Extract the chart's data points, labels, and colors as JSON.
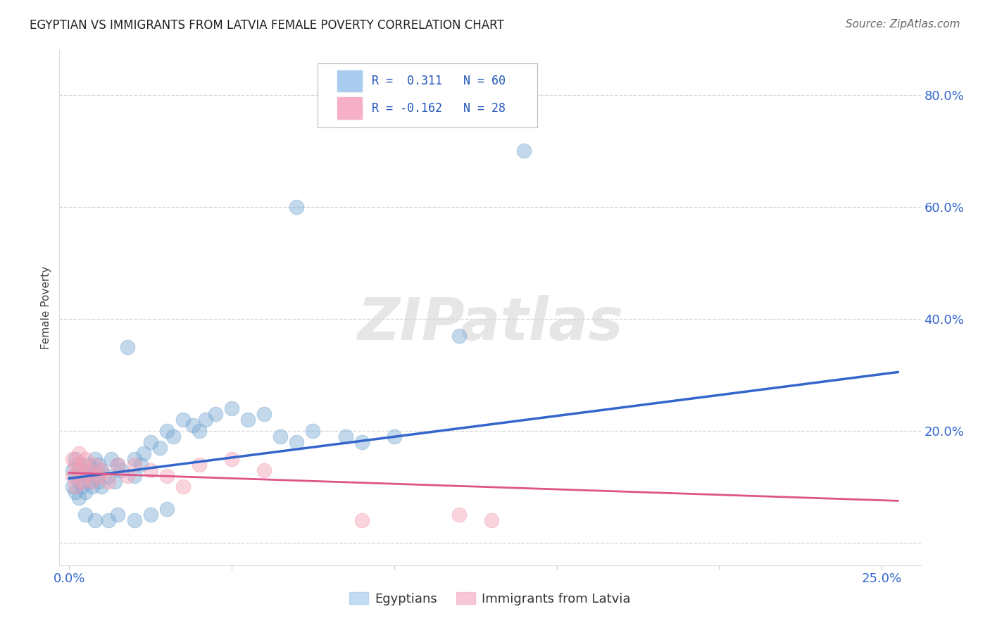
{
  "title": "EGYPTIAN VS IMMIGRANTS FROM LATVIA FEMALE POVERTY CORRELATION CHART",
  "source": "Source: ZipAtlas.com",
  "ylabel": "Female Poverty",
  "xlim": [
    -0.003,
    0.262
  ],
  "ylim": [
    -0.04,
    0.88
  ],
  "x_tick_positions": [
    0.0,
    0.05,
    0.1,
    0.15,
    0.2,
    0.25
  ],
  "x_tick_labels": [
    "0.0%",
    "",
    "",
    "",
    "",
    "25.0%"
  ],
  "y_tick_positions": [
    0.0,
    0.2,
    0.4,
    0.6,
    0.8
  ],
  "y_tick_labels_right": [
    "",
    "20.0%",
    "40.0%",
    "60.0%",
    "80.0%"
  ],
  "blue_color": "#7aaad4",
  "pink_color": "#f5a0b5",
  "blue_line_color": "#3366cc",
  "pink_line_color": "#dd5588",
  "title_fontsize": 12,
  "source_fontsize": 11,
  "tick_fontsize": 13,
  "ylabel_fontsize": 11,
  "watermark_text": "ZIPatlas",
  "legend_R1_text": "R =  0.311   N = 60",
  "legend_R2_text": "R = -0.162   N = 28",
  "blue_trend_x0": 0.0,
  "blue_trend_y0": 0.115,
  "blue_trend_x1": 0.255,
  "blue_trend_y1": 0.305,
  "pink_trend_x0": 0.0,
  "pink_trend_y0": 0.125,
  "pink_trend_x1": 0.255,
  "pink_trend_y1": 0.075,
  "egy_x": [
    0.001,
    0.001,
    0.002,
    0.002,
    0.002,
    0.003,
    0.003,
    0.003,
    0.004,
    0.004,
    0.005,
    0.005,
    0.006,
    0.006,
    0.007,
    0.007,
    0.008,
    0.008,
    0.009,
    0.009,
    0.01,
    0.01,
    0.012,
    0.013,
    0.014,
    0.015,
    0.016,
    0.018,
    0.02,
    0.02,
    0.022,
    0.023,
    0.025,
    0.028,
    0.03,
    0.032,
    0.035,
    0.038,
    0.04,
    0.042,
    0.045,
    0.05,
    0.055,
    0.06,
    0.065,
    0.07,
    0.075,
    0.085,
    0.09,
    0.1,
    0.005,
    0.008,
    0.012,
    0.015,
    0.02,
    0.025,
    0.03,
    0.07,
    0.14,
    0.12
  ],
  "egy_y": [
    0.1,
    0.13,
    0.09,
    0.12,
    0.15,
    0.08,
    0.11,
    0.14,
    0.1,
    0.13,
    0.09,
    0.12,
    0.11,
    0.14,
    0.1,
    0.13,
    0.12,
    0.15,
    0.11,
    0.14,
    0.1,
    0.13,
    0.12,
    0.15,
    0.11,
    0.14,
    0.13,
    0.35,
    0.12,
    0.15,
    0.14,
    0.16,
    0.18,
    0.17,
    0.2,
    0.19,
    0.22,
    0.21,
    0.2,
    0.22,
    0.23,
    0.24,
    0.22,
    0.23,
    0.19,
    0.18,
    0.2,
    0.19,
    0.18,
    0.19,
    0.05,
    0.04,
    0.04,
    0.05,
    0.04,
    0.05,
    0.06,
    0.6,
    0.7,
    0.37
  ],
  "lat_x": [
    0.001,
    0.001,
    0.002,
    0.002,
    0.003,
    0.003,
    0.004,
    0.004,
    0.005,
    0.005,
    0.006,
    0.007,
    0.008,
    0.009,
    0.01,
    0.012,
    0.015,
    0.018,
    0.02,
    0.025,
    0.03,
    0.035,
    0.04,
    0.05,
    0.06,
    0.09,
    0.12,
    0.13
  ],
  "lat_y": [
    0.12,
    0.15,
    0.1,
    0.14,
    0.13,
    0.16,
    0.11,
    0.14,
    0.12,
    0.15,
    0.13,
    0.11,
    0.14,
    0.12,
    0.13,
    0.11,
    0.14,
    0.12,
    0.14,
    0.13,
    0.12,
    0.1,
    0.14,
    0.15,
    0.13,
    0.04,
    0.05,
    0.04
  ]
}
